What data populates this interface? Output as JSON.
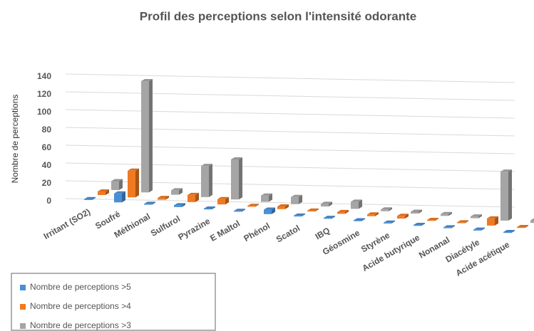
{
  "chart_data": {
    "type": "bar3d",
    "title": "Profil des perceptions selon l'intensité odorante",
    "y_label": "Nombre de perceptions",
    "categories": [
      "Irritant (SO2)",
      "Soufré",
      "Méthional",
      "Sulfurol",
      "Pyrazine",
      "E Maltol",
      "Phénol",
      "Scatol",
      "IBQ",
      "Géosmine",
      "Styrène",
      "Acide butyrique",
      "Nonanal",
      "Diacétyle",
      "Acide acétique"
    ],
    "series": [
      {
        "name": "Nombre de perceptions >5",
        "color": "#4a8fd6",
        "values": [
          1,
          10,
          1,
          2,
          1,
          1,
          5,
          1,
          1,
          1,
          1,
          1,
          1,
          1,
          1
        ]
      },
      {
        "name": "Nombre de perceptions >4",
        "color": "#f07a22",
        "values": [
          4,
          30,
          2,
          8,
          6,
          1,
          3,
          1,
          2,
          2,
          3,
          1,
          1,
          8,
          1
        ]
      },
      {
        "name": "Nombre de perceptions >3",
        "color": "#a5a5a5",
        "values": [
          10,
          125,
          5,
          35,
          45,
          7,
          8,
          3,
          8,
          2,
          2,
          2,
          2,
          55,
          3
        ]
      }
    ],
    "ylim": [
      0,
      140
    ],
    "yticks": [
      0,
      20,
      40,
      60,
      80,
      100,
      120,
      140
    ],
    "grid": true,
    "legend": "bottom-left"
  }
}
